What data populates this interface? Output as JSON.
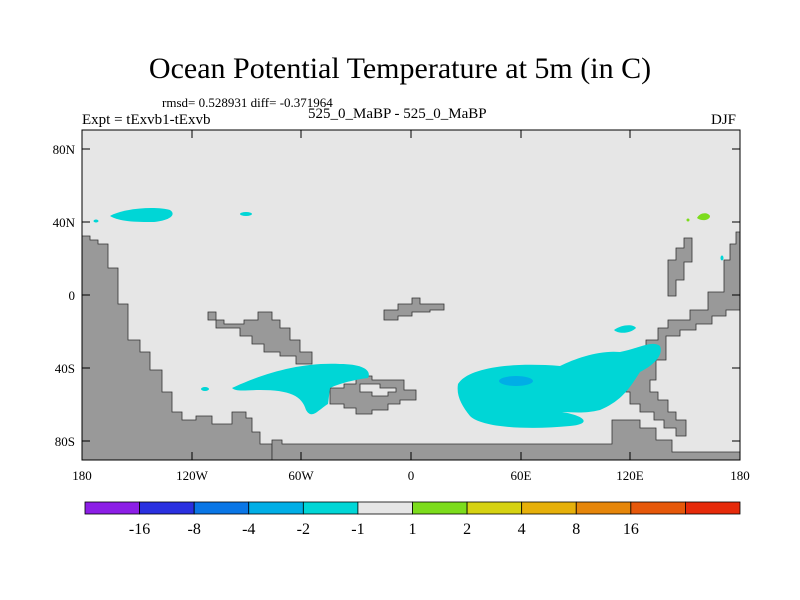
{
  "header": {
    "title": "Ocean Potential Temperature at 5m (in C)",
    "stats": "rmsd= 0.528931 diff= -0.371964",
    "expt": "Expt = tExvb1-tExvb",
    "case": "525_0_MaBP - 525_0_MaBP",
    "season": "DJF"
  },
  "axes": {
    "lon_ticks": [
      "180",
      "120W",
      "60W",
      "0",
      "60E",
      "120E",
      "180"
    ],
    "lat_ticks": [
      "80N",
      "40N",
      "0",
      "40S",
      "80S"
    ]
  },
  "colors": {
    "background": "#e6e6e6",
    "land": "#999999",
    "contour_minus2_minus1": "#00d6d6",
    "contour_minus4_minus2": "#00aee6",
    "contour_1_2": "#7cdc1c"
  },
  "colorbar": {
    "colors": [
      "#8c1ee6",
      "#2a30e0",
      "#0a76e6",
      "#00aee6",
      "#00d6d6",
      "#e6e6e6",
      "#7cdc1c",
      "#d6d212",
      "#e6b00a",
      "#e6860a",
      "#e6580a",
      "#e62a0a"
    ],
    "labels": [
      "-16",
      "-8",
      "-4",
      "-2",
      "-1",
      "1",
      "2",
      "4",
      "8",
      "16"
    ]
  }
}
